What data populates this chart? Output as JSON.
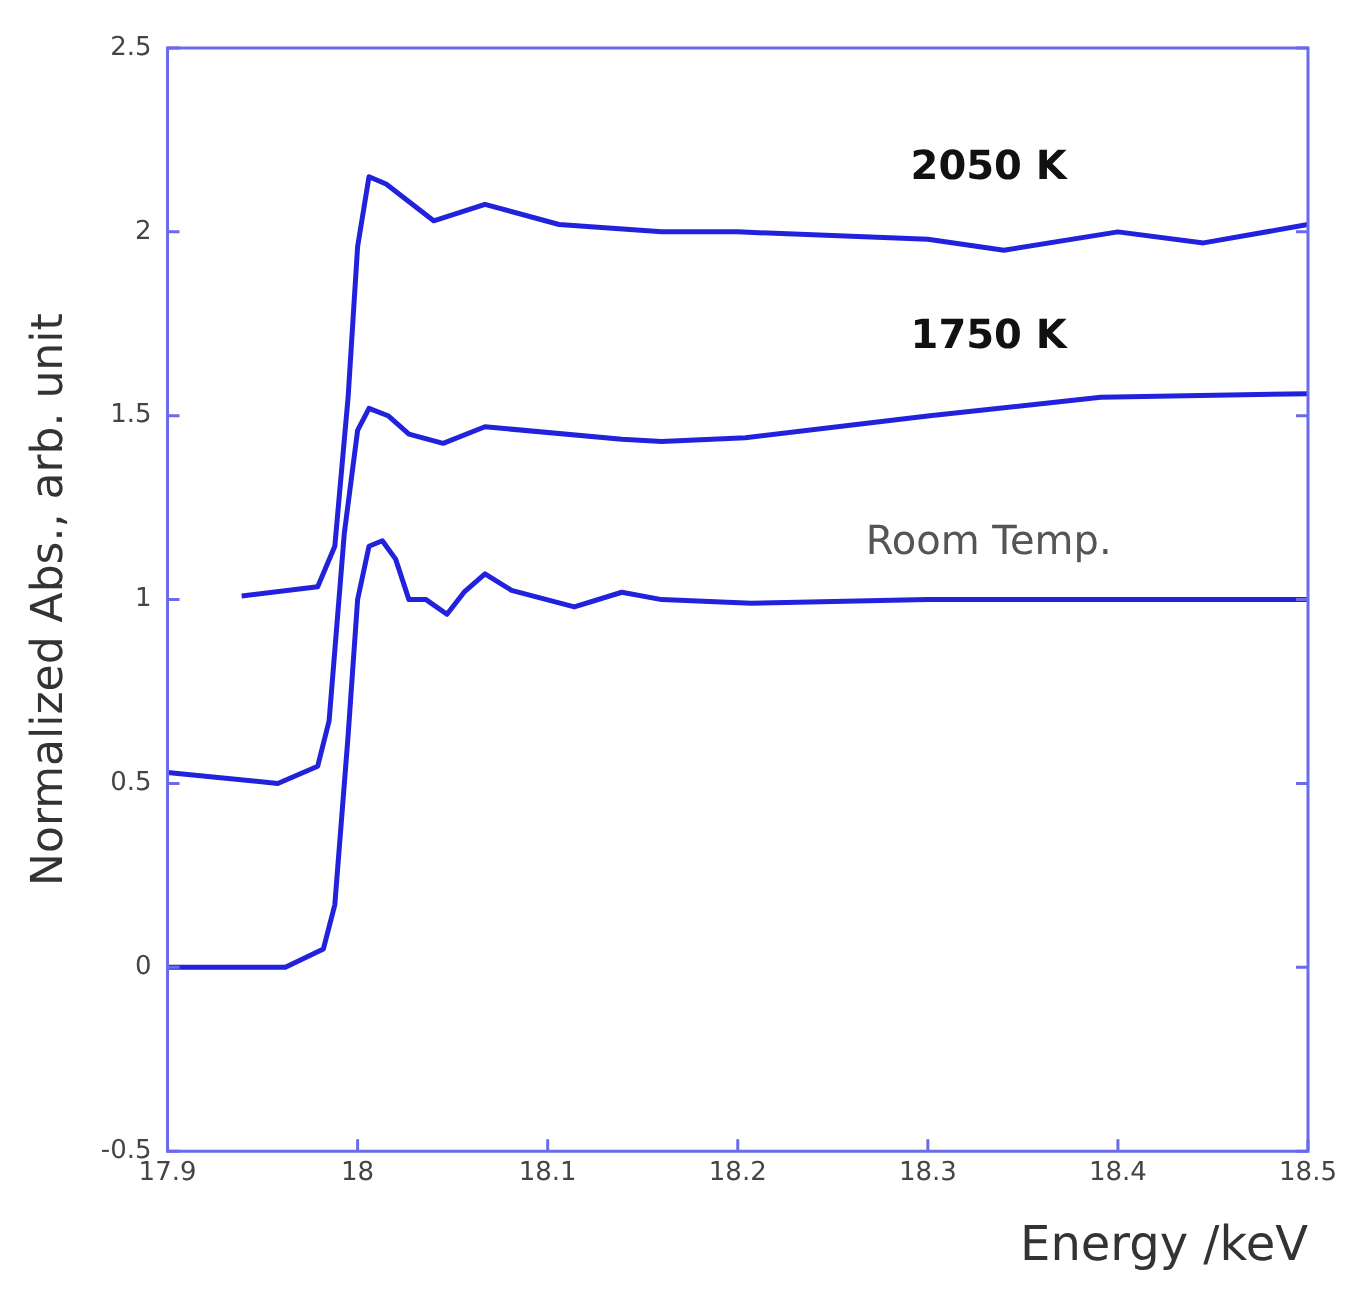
{
  "chart_data": {
    "type": "line",
    "xlabel": "Energy /keV",
    "ylabel": "Normalized Abs., arb. unit",
    "xlim": [
      17.9,
      18.5
    ],
    "xticks": [
      17.9,
      18,
      18.1,
      18.2,
      18.3,
      18.4,
      18.5
    ],
    "ylim": [
      -0.5,
      2.5
    ],
    "yticks": [
      -0.5,
      0,
      0.5,
      1,
      1.5,
      2,
      2.5
    ],
    "grid": false,
    "legend": false,
    "marker": "none",
    "line_style": "solid",
    "series": [
      {
        "name": "2050 K",
        "color": "#2222dd",
        "x": [
          17.939,
          17.979,
          17.988,
          17.995,
          18.0,
          18.006,
          18.015,
          18.04,
          18.067,
          18.106,
          18.16,
          18.2,
          18.3,
          18.34,
          18.4,
          18.445,
          18.5
        ],
        "values": [
          1.01,
          1.035,
          1.145,
          1.55,
          1.96,
          2.15,
          2.13,
          2.03,
          2.075,
          2.02,
          2.0,
          2.0,
          1.98,
          1.95,
          2.0,
          1.97,
          2.02
        ]
      },
      {
        "name": "1750 K",
        "color": "#2222dd",
        "x": [
          17.9,
          17.958,
          17.979,
          17.985,
          17.993,
          18.0,
          18.006,
          18.016,
          18.027,
          18.045,
          18.067,
          18.139,
          18.16,
          18.204,
          18.301,
          18.391,
          18.5
        ],
        "values": [
          0.53,
          0.5,
          0.547,
          0.67,
          1.18,
          1.46,
          1.52,
          1.5,
          1.45,
          1.425,
          1.47,
          1.436,
          1.43,
          1.44,
          1.5,
          1.55,
          1.56
        ]
      },
      {
        "name": "Room Temp.",
        "color": "#2222dd",
        "x": [
          17.9,
          17.962,
          17.982,
          17.988,
          17.995,
          18.0,
          18.006,
          18.013,
          18.02,
          18.027,
          18.036,
          18.047,
          18.056,
          18.067,
          18.081,
          18.114,
          18.139,
          18.16,
          18.207,
          18.3,
          18.4,
          18.5
        ],
        "values": [
          0.0,
          0.0,
          0.05,
          0.17,
          0.63,
          1.0,
          1.145,
          1.16,
          1.11,
          1.0,
          1.0,
          0.96,
          1.02,
          1.07,
          1.025,
          0.98,
          1.02,
          1.0,
          0.99,
          1.0,
          1.0,
          1.0
        ]
      }
    ]
  }
}
